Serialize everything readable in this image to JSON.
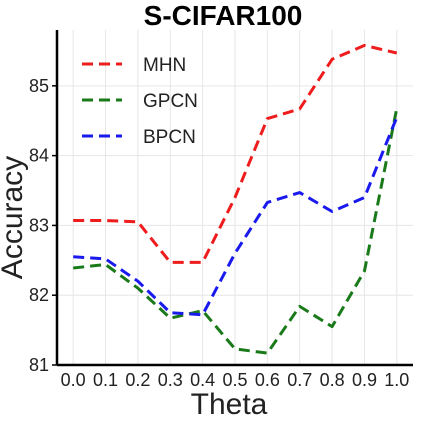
{
  "chart_data": {
    "type": "line",
    "title": "S-CIFAR100",
    "xlabel": "Theta",
    "ylabel": "Accuracy",
    "x": [
      0.0,
      0.1,
      0.2,
      0.3,
      0.4,
      0.5,
      0.6,
      0.7,
      0.8,
      0.9,
      1.0
    ],
    "x_tick_labels": [
      "0.0",
      "0.1",
      "0.2",
      "0.3",
      "0.4",
      "0.5",
      "0.6",
      "0.7",
      "0.8",
      "0.9",
      "1.0"
    ],
    "y_ticks": [
      81,
      82,
      83,
      84,
      85
    ],
    "ylim": [
      81,
      85.8
    ],
    "xlim": [
      -0.05,
      1.05
    ],
    "grid": true,
    "legend_position": "top-left",
    "series": [
      {
        "name": "MHN",
        "color": "#ee1c1c",
        "values": [
          83.07,
          83.07,
          83.05,
          82.47,
          82.47,
          83.4,
          84.53,
          84.67,
          85.38,
          85.58,
          85.47
        ]
      },
      {
        "name": "GPCN",
        "color": "#1a7a1a",
        "values": [
          82.39,
          82.44,
          82.1,
          81.67,
          81.78,
          81.23,
          81.17,
          81.84,
          81.55,
          82.35,
          84.68
        ]
      },
      {
        "name": "BPCN",
        "color": "#1a1aee",
        "values": [
          82.55,
          82.52,
          82.2,
          81.75,
          81.72,
          82.6,
          83.33,
          83.47,
          83.2,
          83.4,
          84.55
        ]
      }
    ]
  }
}
